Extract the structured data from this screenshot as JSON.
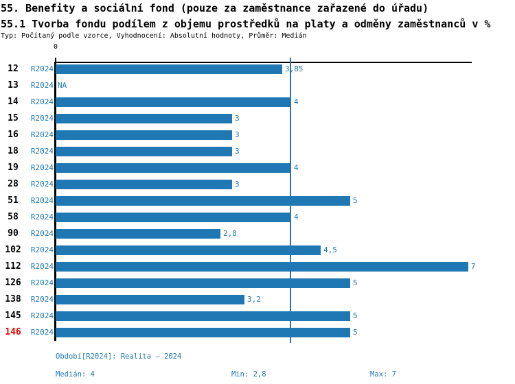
{
  "header": {
    "title": "55. Benefity a sociální fond (pouze za zaměstnance zařazené do úřadu)",
    "subtitle": "55.1 Tvorba fondu podílem z objemu prostředků na platy a odměny zaměstnanců v %",
    "meta": "Typ: Počítaný podle vzorce, Vyhodnocení: Absolutní hodnoty, Průměr: Medián"
  },
  "chart_data": {
    "type": "bar",
    "orientation": "horizontal",
    "title": "55.1 Tvorba fondu podílem z objemu prostředků na platy a odměny zaměstnanců v %",
    "categories": [
      "12",
      "13",
      "14",
      "15",
      "16",
      "18",
      "19",
      "28",
      "51",
      "58",
      "90",
      "102",
      "112",
      "126",
      "138",
      "145",
      "146"
    ],
    "period_label": "R2024",
    "values": [
      3.85,
      null,
      4,
      3,
      3,
      3,
      4,
      3,
      5,
      4,
      2.8,
      4.5,
      7,
      5,
      3.2,
      5,
      5
    ],
    "value_labels": [
      "3,85",
      "NA",
      "4",
      "3",
      "3",
      "3",
      "4",
      "3",
      "5",
      "4",
      "2,8",
      "4,5",
      "7",
      "5",
      "3,2",
      "5",
      "5"
    ],
    "highlighted_categories": [
      "146"
    ],
    "median": 4,
    "xlim": [
      0,
      7.06
    ],
    "x_tick_labels": [
      "0"
    ],
    "grid": false,
    "legend": false,
    "bar_color": "#1f77b4",
    "highlight_color": "#e60000"
  },
  "footer": {
    "period_info": "Období[R2024]: Realita – 2024",
    "median": "Medián: 4",
    "min": "Min: 2,8",
    "max": "Max: 7"
  }
}
